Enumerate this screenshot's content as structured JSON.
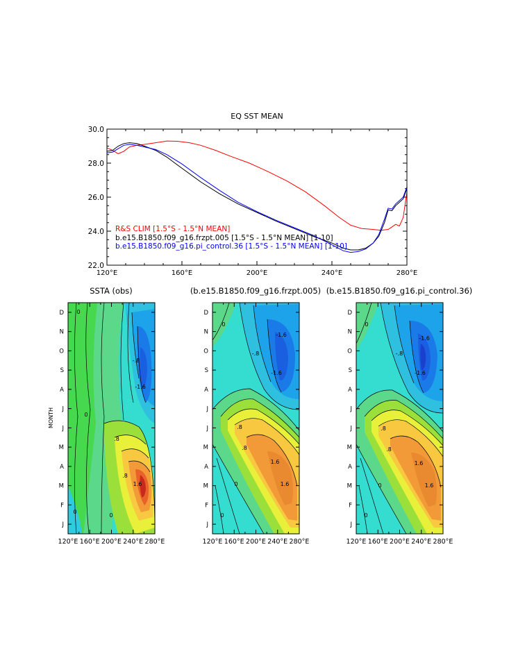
{
  "chart_data": [
    {
      "type": "line",
      "title": "EQ SST MEAN",
      "xlabel": "",
      "ylabel": "",
      "xlim": [
        120,
        280
      ],
      "ylim": [
        22.0,
        30.0
      ],
      "xticks": [
        120,
        160,
        200,
        240,
        280
      ],
      "xtick_labels": [
        "120°E",
        "160°E",
        "200°E",
        "240°E",
        "280°E"
      ],
      "yticks": [
        22,
        24,
        26,
        28,
        30
      ],
      "ytick_labels": [
        "22.0",
        "24.0",
        "26.0",
        "28.0",
        "30.0"
      ],
      "legend_position": "bottom-left",
      "series": [
        {
          "name": "R&S CLIM [1.5°S - 1.5°N MEAN]",
          "color": "#ff0000",
          "x": [
            120,
            123,
            126,
            129,
            132,
            136,
            140,
            146,
            152,
            158,
            164,
            170,
            178,
            186,
            196,
            206,
            216,
            226,
            236,
            244,
            250,
            256,
            262,
            266,
            270,
            272,
            274,
            276,
            278,
            280
          ],
          "y": [
            28.9,
            28.75,
            28.55,
            28.7,
            28.95,
            29.05,
            29.1,
            29.2,
            29.3,
            29.28,
            29.2,
            29.05,
            28.75,
            28.4,
            28.0,
            27.5,
            26.95,
            26.3,
            25.5,
            24.8,
            24.35,
            24.15,
            24.1,
            24.05,
            24.1,
            24.25,
            24.4,
            24.3,
            24.8,
            26.3
          ]
        },
        {
          "name": "b.e15.B1850.f09_g16.frzpt.005 [1.5°S - 1.5°N MEAN] [1-10]",
          "color": "#000000",
          "x": [
            120,
            123,
            126,
            129,
            132,
            136,
            140,
            146,
            152,
            160,
            170,
            180,
            190,
            200,
            210,
            220,
            230,
            240,
            246,
            250,
            254,
            258,
            262,
            265,
            268,
            270,
            272,
            274,
            276,
            278,
            280
          ],
          "y": [
            28.7,
            28.75,
            29.0,
            29.15,
            29.2,
            29.15,
            29.0,
            28.75,
            28.35,
            27.7,
            26.9,
            26.2,
            25.6,
            25.1,
            24.6,
            24.15,
            23.7,
            23.3,
            23.0,
            22.9,
            22.9,
            23.0,
            23.3,
            23.7,
            24.5,
            25.25,
            25.2,
            25.5,
            25.7,
            25.9,
            26.5
          ]
        },
        {
          "name": "b.e15.B1850.f09_g16.pi_control.36 [1.5°S - 1.5°N MEAN] [1-10]",
          "color": "#0000ff",
          "x": [
            120,
            123,
            126,
            129,
            132,
            136,
            140,
            146,
            152,
            160,
            170,
            180,
            190,
            200,
            210,
            220,
            230,
            240,
            246,
            250,
            254,
            258,
            262,
            265,
            268,
            270,
            272,
            274,
            276,
            278,
            280
          ],
          "y": [
            28.6,
            28.65,
            28.85,
            29.05,
            29.1,
            29.05,
            28.95,
            28.8,
            28.5,
            27.95,
            27.15,
            26.4,
            25.7,
            25.15,
            24.65,
            24.2,
            23.75,
            23.2,
            22.85,
            22.75,
            22.8,
            22.95,
            23.3,
            23.8,
            24.7,
            25.35,
            25.3,
            25.6,
            25.8,
            26.0,
            26.6
          ]
        }
      ]
    },
    {
      "type": "heatmap",
      "title": "SSTA (obs)",
      "ylabel": "MONTH",
      "xlim": [
        120,
        280
      ],
      "xtick_labels": [
        "120°E",
        "160°E",
        "200°E",
        "240°E",
        "280°E"
      ],
      "ytick_labels": [
        "J",
        "F",
        "M",
        "A",
        "M",
        "J",
        "J",
        "A",
        "S",
        "O",
        "N",
        "D"
      ],
      "contour_labels": [
        "0",
        "0",
        ".8",
        "-.8",
        "-1.6",
        "1.6",
        ".8",
        "0",
        "0"
      ],
      "colors": {
        "low": "#1a5fe0",
        "mid": "#5bd88a",
        "neutral": "#2fd6cf",
        "high": "#f5b24a",
        "peak": "#c8291c"
      }
    },
    {
      "type": "heatmap",
      "title": "(b.e15.B1850.f09_g16.frzpt.005)",
      "xlim": [
        120,
        280
      ],
      "xtick_labels": [
        "120°E",
        "160°E",
        "200°E",
        "240°E",
        "280°E"
      ],
      "contour_labels": [
        "0",
        "-.8",
        "-1.6",
        "-1.6",
        ".8",
        "1.6",
        ".8",
        "0",
        "1.6",
        "0"
      ],
      "colors": {
        "low": "#1a5fe0",
        "mid": "#5bd88a",
        "neutral": "#2fd6cf",
        "high": "#f5b24a",
        "peak": "#f08a2e"
      }
    },
    {
      "type": "heatmap",
      "title": "(b.e15.B1850.f09_g16.pi_control.36)",
      "xlim": [
        120,
        280
      ],
      "xtick_labels": [
        "120°E",
        "160°E",
        "200°E",
        "240°E",
        "280°E"
      ],
      "contour_labels": [
        "0",
        "-.8",
        "-1.6",
        "-1.6",
        ".8",
        "1.6",
        ".8",
        "0",
        "1.6",
        "0"
      ],
      "colors": {
        "low": "#1a5fe0",
        "mid": "#5bd88a",
        "neutral": "#2fd6cf",
        "high": "#f5b24a",
        "peak": "#f08a2e"
      }
    }
  ]
}
